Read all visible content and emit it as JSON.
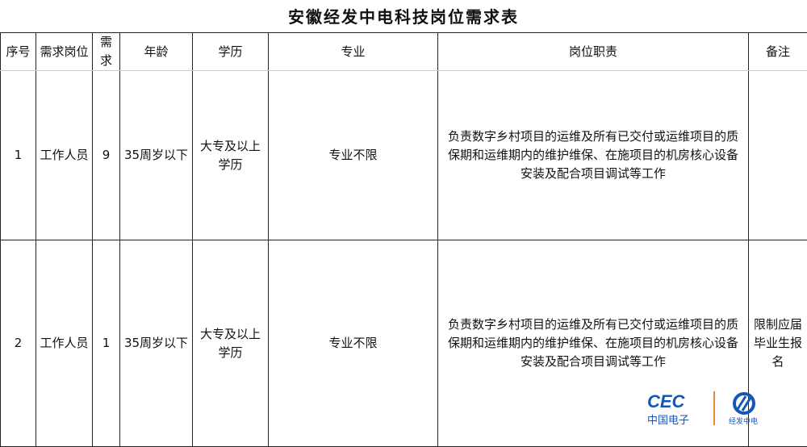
{
  "title": "安徽经发中电科技岗位需求表",
  "headers": [
    "序号",
    "需求岗位",
    "需求",
    "年龄",
    "学历",
    "专业",
    "岗位职责",
    "备注"
  ],
  "rows": [
    {
      "no": "1",
      "position": "工作人员",
      "count": "9",
      "age": "35周岁以下",
      "education": "大专及以上学历",
      "major": "专业不限",
      "duty": "负责数字乡村项目的运维及所有已交付或运维项目的质保期和运维期内的维护维保、在施项目的机房核心设备安装及配合项目调试等工作",
      "note": ""
    },
    {
      "no": "2",
      "position": "工作人员",
      "count": "1",
      "age": "35周岁以下",
      "education": "大专及以上学历",
      "major": "专业不限",
      "duty": "负责数字乡村项目的运维及所有已交付或运维项目的质保期和运维期内的维护维保、在施项目的机房核心设备安装及配合项目调试等工作",
      "note": "限制应届毕业生报名"
    }
  ],
  "logo": {
    "brand": "CEC",
    "brand_cn": "中国电子",
    "sub": "经发中电",
    "color": "#1457b4",
    "divider_color": "#e08a3c"
  }
}
